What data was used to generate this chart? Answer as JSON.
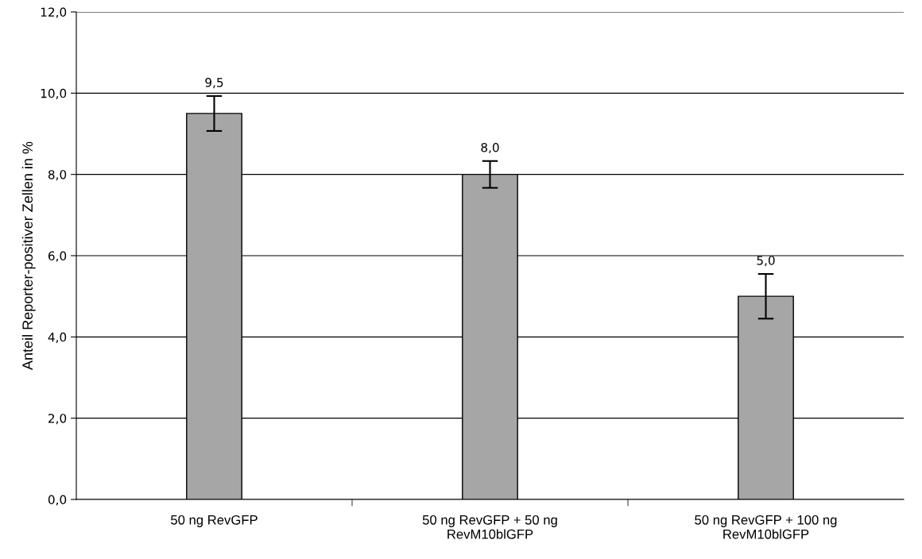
{
  "chart_data": {
    "type": "bar",
    "ylabel": "Anteil Reporter-positiver Zellen in %",
    "categories": [
      "50 ng RevGFP",
      "50 ng RevGFP + 50 ng\nRevM10blGFP",
      "50 ng RevGFP + 100 ng\nRevM10blGFP"
    ],
    "values": [
      9.5,
      8.0,
      5.0
    ],
    "errors": [
      0.43,
      0.33,
      0.55
    ],
    "value_labels": [
      "9,5",
      "8,0",
      "5,0"
    ],
    "color": "#a6a6a6",
    "ylim": [
      0,
      12
    ],
    "yticks": [
      {
        "value": 0,
        "label": "0,0"
      },
      {
        "value": 2,
        "label": "2,0"
      },
      {
        "value": 4,
        "label": "4,0"
      },
      {
        "value": 6,
        "label": "6,0"
      },
      {
        "value": 8,
        "label": "8,0"
      },
      {
        "value": 10,
        "label": "10,0"
      },
      {
        "value": 12,
        "label": "12,0"
      }
    ],
    "grid": "y",
    "legend": false
  }
}
